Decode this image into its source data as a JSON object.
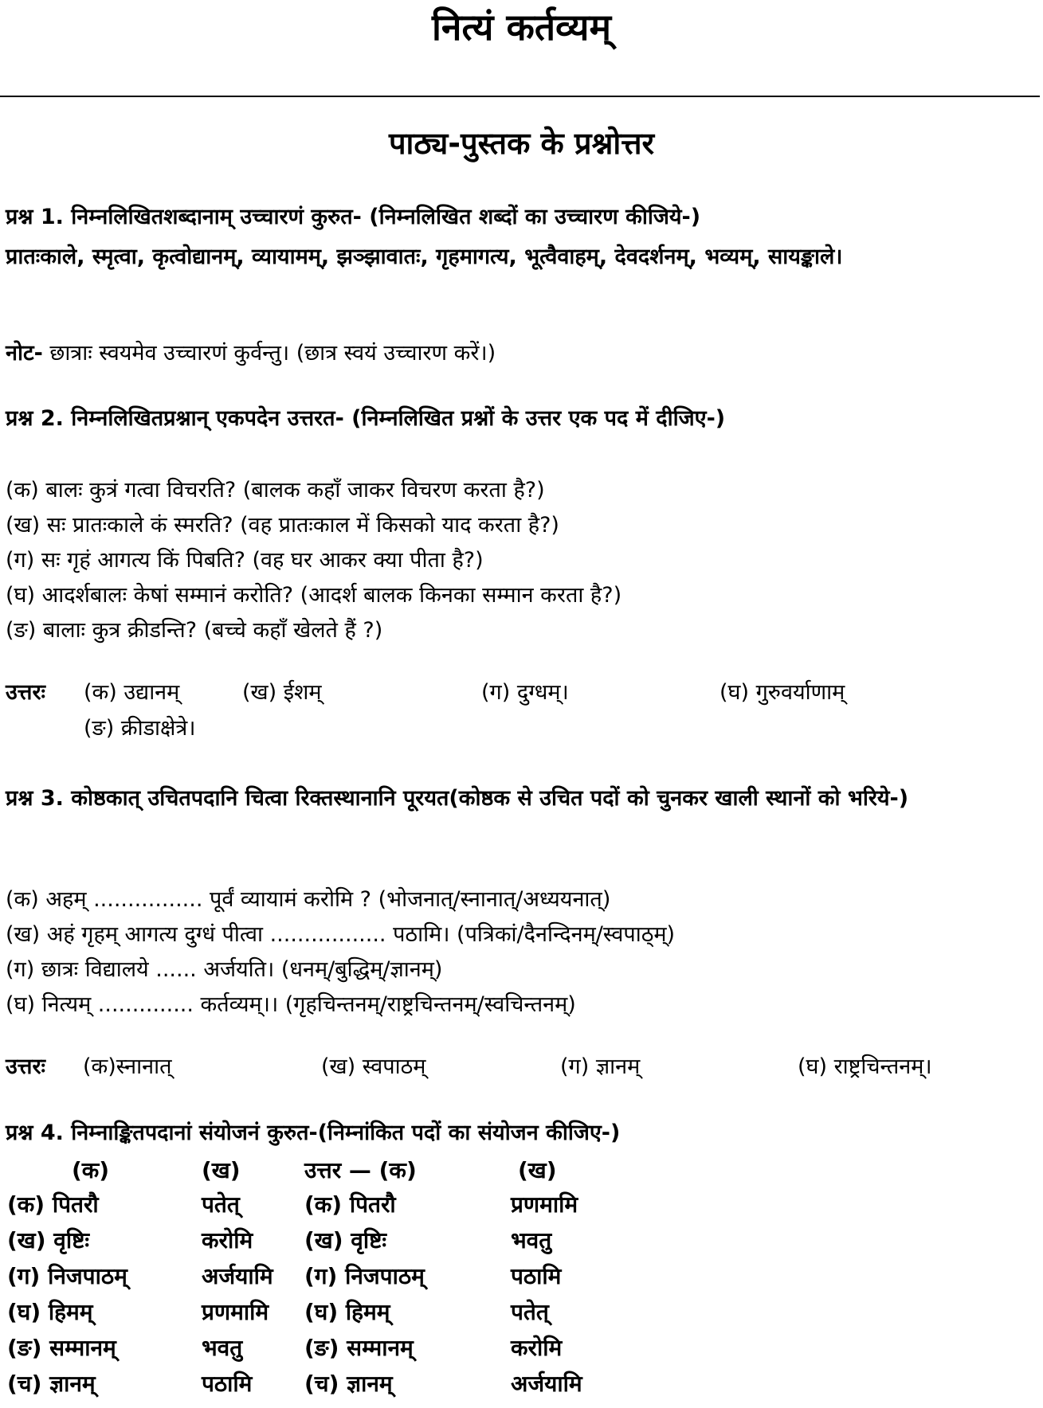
{
  "title": "नित्यं कर्तव्यम्",
  "subtitle": "पाठ्य-पुस्तक के प्रश्नोत्तर",
  "q1": {
    "heading": "प्रश्न 1. निम्नलिखितशब्दानाम् उच्चारणं कुरुत- (निम्नलिखित शब्दों का उच्चारण कीजिये-)",
    "words": "प्रातःकाले, स्मृत्वा, कृत्वोद्यानम्, व्यायामम्, झञ्झावातः, गृहमागत्य, भूत्वैवाहम्, देवदर्शनम्, भव्यम्, सायङ्काले।",
    "note_label": "नोट-",
    "note": "छात्राः स्वयमेव उच्चारणं कुर्वन्तु। (छात्र स्वयं उच्चारण करें।)"
  },
  "q2": {
    "heading": "प्रश्न 2. निम्नलिखितप्रश्नान् एकपदेन उत्तरत- (निम्नलिखित प्रश्नों के उत्तर एक पद में दीजिए-)",
    "items": [
      "(क) बालः कुत्रं गत्वा विचरति? (बालक कहाँ जाकर विचरण करता है?)",
      "(ख) सः प्रातःकाले कं स्मरति? (वह प्रातःकाल में किसको याद करता है?)",
      "(ग) सः गृहं आगत्य किं पिबति? (वह घर आकर क्या पीता है?)",
      "(घ) आदर्शबालः केषां सम्मानं करोति? (आदर्श बालक किनका सम्मान करता है?)",
      "(ङ) बालाः कुत्र क्रीडन्ति? (बच्चे कहाँ खेलते हैं ?)"
    ],
    "answer_label": "उत्तरः",
    "answers": [
      "(क) उद्यानम्",
      "(ख) ईशम्",
      "(ग) दुग्धम्।",
      "(घ) गुरुवर्याणाम्",
      "(ङ) क्रीडाक्षेत्रे।"
    ]
  },
  "q3": {
    "heading": "प्रश्न 3. कोष्ठकात् उचितपदानि चित्वा रिक्तस्थानानि पूरयत(कोष्ठक से उचित पदों को चुनकर खाली स्थानों को भरिये-)",
    "items": [
      "(क) अहम् ................ पूर्वं व्यायामं करोमि ? (भोजनात्/स्नानात्/अध्ययनात्)",
      "(ख) अहं गृहम् आगत्य दुग्धं पीत्वा ................. पठामि। (पत्रिकां/दैनन्दिनम्/स्वपाठ्म्)",
      "(ग) छात्रः विद्यालये ...... अर्जयति। (धनम्/बुद्धिम्/ज्ञानम्)",
      "(घ) नित्यम् .............. कर्तव्यम्।। (गृहचिन्तनम्/राष्ट्रचिन्तनम्/स्वचिन्तनम्)"
    ],
    "answer_label": "उत्तरः",
    "answers": [
      "(क)स्नानात्",
      "(ख) स्वपाठम्",
      "(ग) ज्ञानम्",
      "(घ) राष्ट्रचिन्तनम्।"
    ]
  },
  "q4": {
    "heading": "प्रश्न 4. निम्नाङ्कितपदानां संयोजनं कुरुत-(निम्नांकित पदों का संयोजन कीजिए-)",
    "table": {
      "headers": [
        "(क)",
        "(ख)",
        "उत्तर — (क)",
        "(ख)"
      ],
      "rows": [
        [
          "(क) पितरौ",
          "पतेत्",
          "(क) पितरौ",
          "प्रणमामि"
        ],
        [
          "(ख) वृष्टिः",
          "करोमि",
          "(ख) वृष्टिः",
          "भवतु"
        ],
        [
          "(ग) निजपाठम्",
          "अर्जयामि",
          "(ग) निजपाठम्",
          "पठामि"
        ],
        [
          "(घ) हिमम्",
          "प्रणमामि",
          "(घ) हिमम्",
          "पतेत्"
        ],
        [
          "(ङ) सम्मानम्",
          "भवतु",
          "(ङ) सम्मानम्",
          "करोमि"
        ],
        [
          "(च) ज्ञानम्",
          "पठामि",
          "(च) ज्ञानम्",
          "अर्जयामि"
        ]
      ]
    }
  }
}
